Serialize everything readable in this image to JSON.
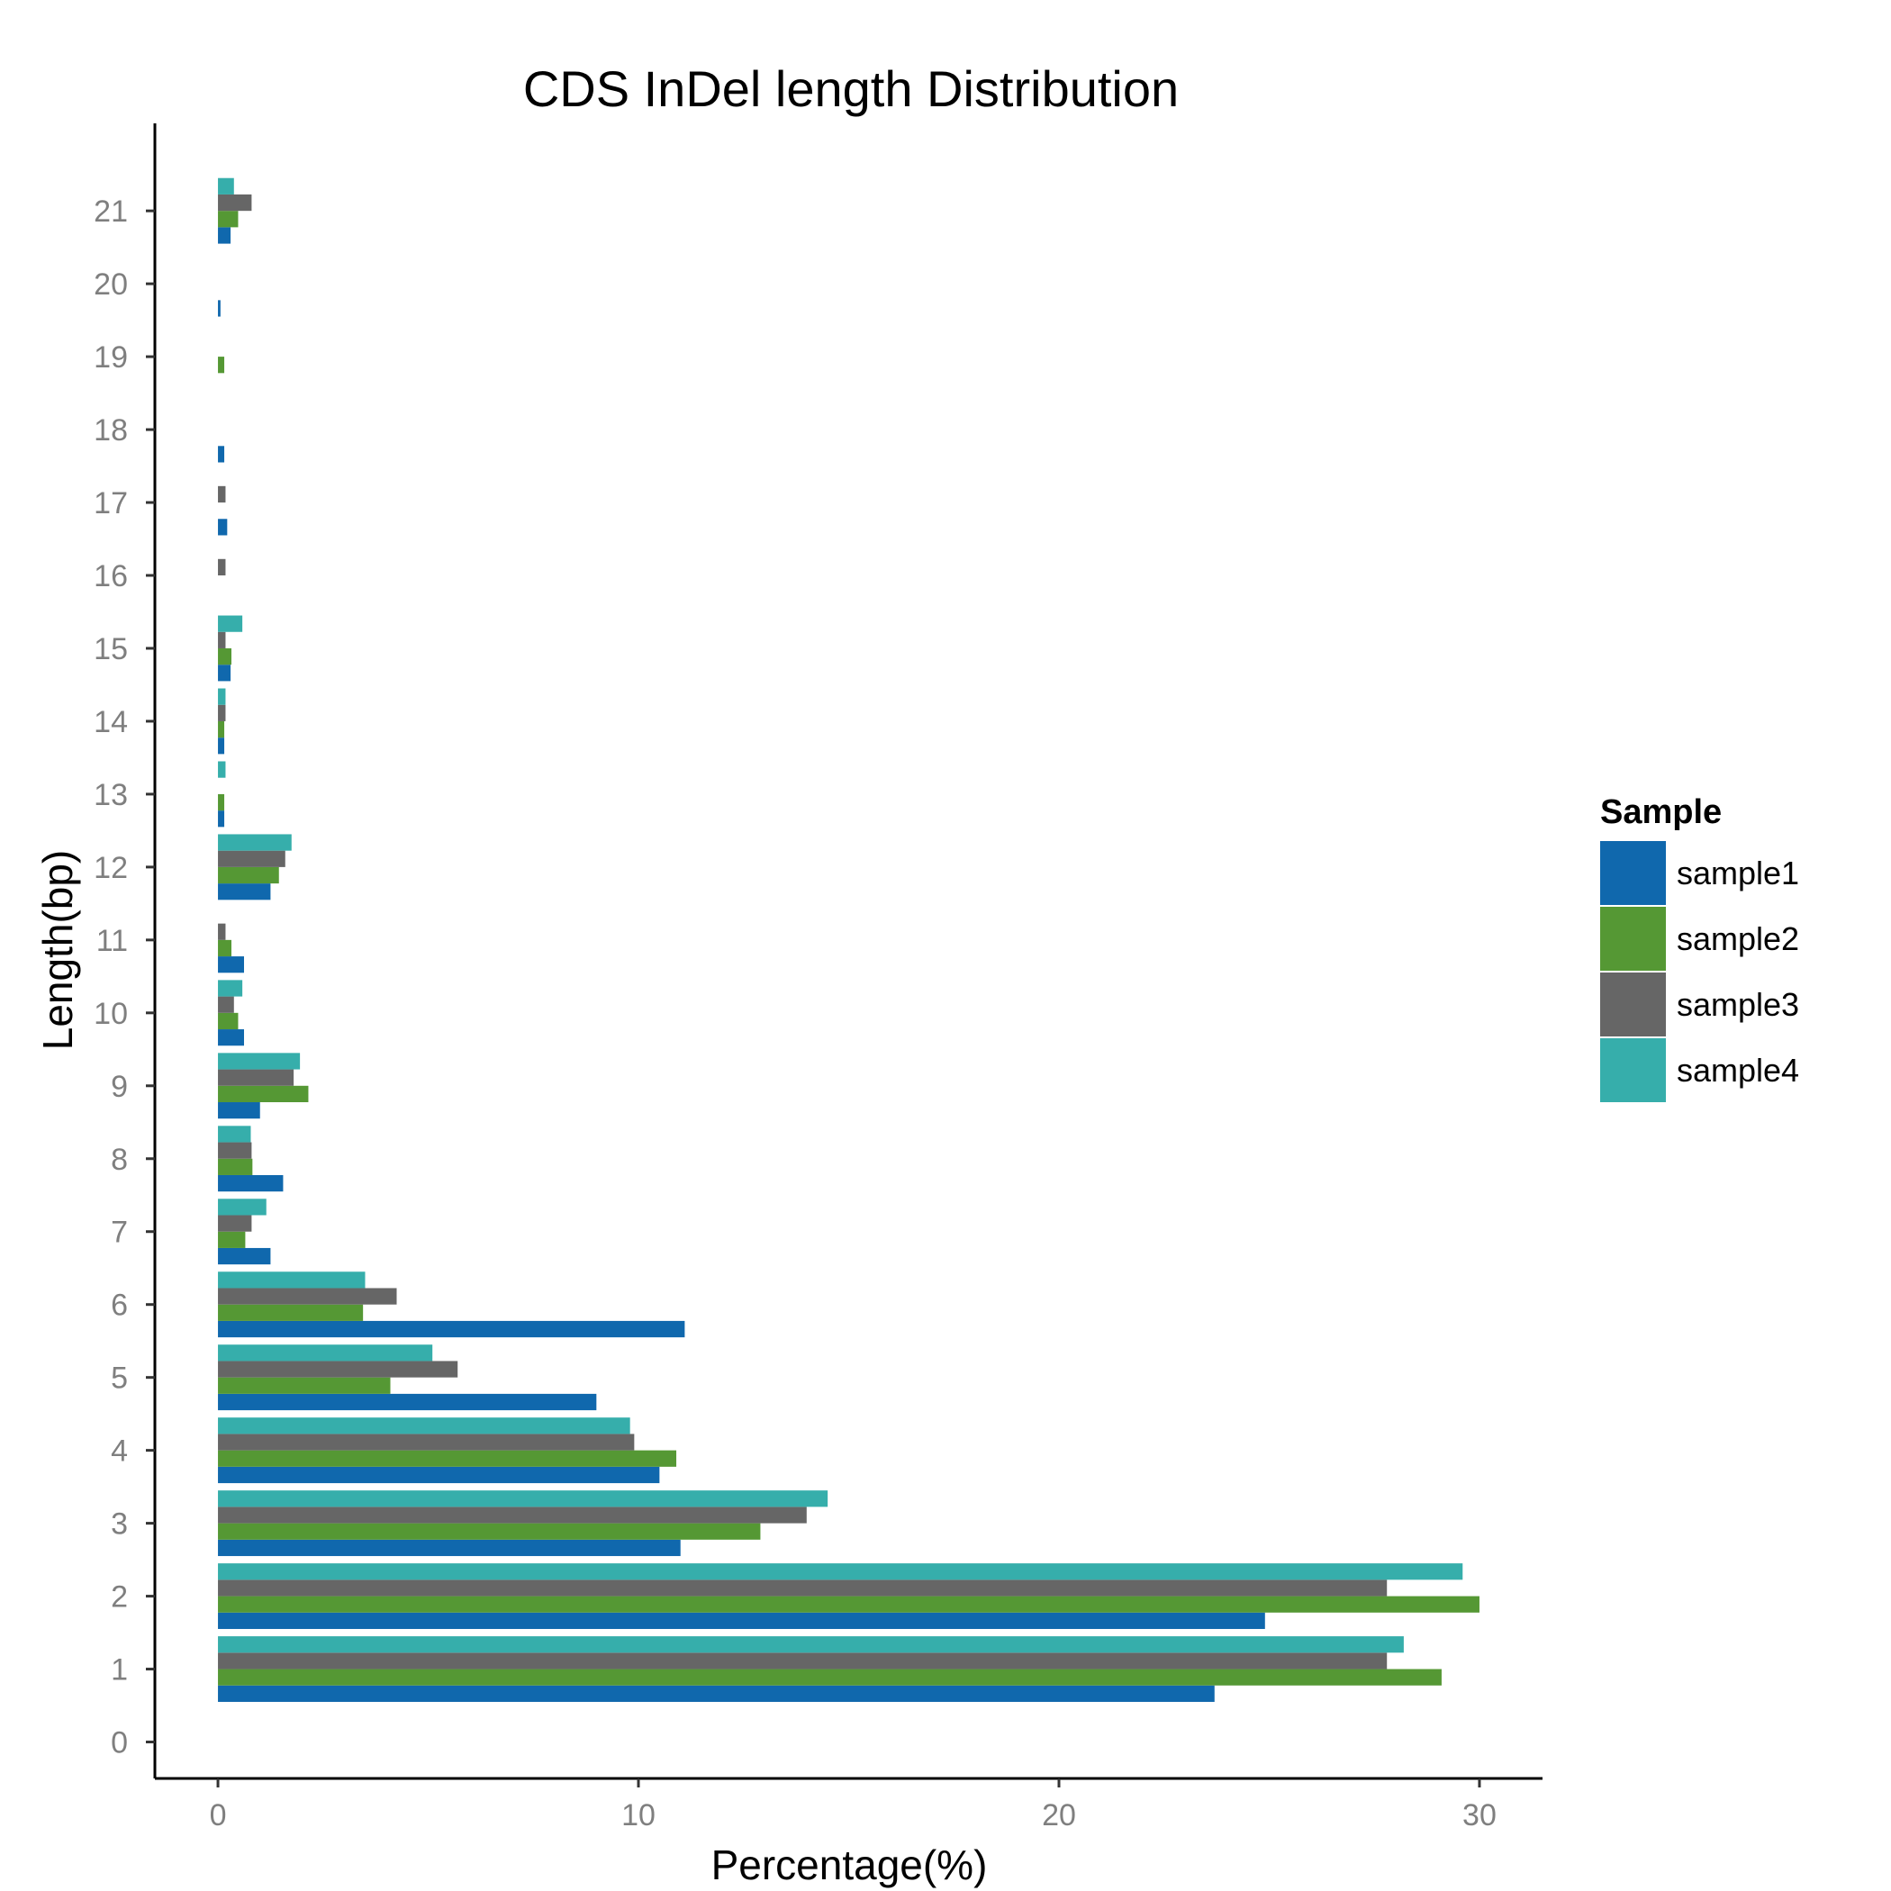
{
  "chart_data": {
    "type": "bar",
    "orientation": "horizontal",
    "title": "CDS InDel length Distribution",
    "xlabel": "Percentage(%)",
    "ylabel": "Length(bp)",
    "xlim": [
      -1.5,
      31.5
    ],
    "ylim": [
      -0.5,
      22.2
    ],
    "x_ticks": [
      0,
      10,
      20,
      30
    ],
    "x_tick_labels": [
      "0",
      "10",
      "20",
      "30"
    ],
    "categories": [
      0,
      1,
      2,
      3,
      4,
      5,
      6,
      7,
      8,
      9,
      10,
      11,
      12,
      13,
      14,
      15,
      16,
      17,
      18,
      19,
      20,
      21
    ],
    "category_labels": [
      "0",
      "1",
      "2",
      "3",
      "4",
      "5",
      "6",
      "7",
      "8",
      "9",
      "10",
      "11",
      "12",
      "13",
      "14",
      "15",
      "16",
      "17",
      "18",
      "19",
      "20",
      "21"
    ],
    "grid": false,
    "legend": {
      "title": "Sample",
      "position": "right",
      "entries": [
        "sample1",
        "sample2",
        "sample3",
        "sample4"
      ]
    },
    "series": [
      {
        "name": "sample1",
        "color": "#1068ad",
        "values": [
          0,
          23.7,
          24.9,
          11.0,
          10.5,
          9.0,
          11.1,
          1.25,
          1.55,
          1.0,
          0.62,
          0.62,
          1.25,
          0.15,
          0.15,
          0.3,
          0,
          0.22,
          0.15,
          0,
          0.06,
          0.3
        ]
      },
      {
        "name": "sample2",
        "color": "#559834",
        "values": [
          0,
          29.1,
          30.0,
          12.9,
          10.9,
          4.1,
          3.45,
          0.65,
          0.82,
          2.15,
          0.48,
          0.32,
          1.45,
          0.15,
          0.15,
          0.32,
          0,
          0,
          0,
          0.15,
          0,
          0.48
        ]
      },
      {
        "name": "sample3",
        "color": "#666666",
        "values": [
          0,
          27.8,
          27.8,
          14.0,
          9.9,
          5.7,
          4.25,
          0.8,
          0.8,
          1.8,
          0.38,
          0.18,
          1.6,
          0,
          0.18,
          0.18,
          0.18,
          0.18,
          0,
          0,
          0,
          0.8
        ]
      },
      {
        "name": "sample4",
        "color": "#36aeab",
        "values": [
          0,
          28.2,
          29.6,
          14.5,
          9.8,
          5.1,
          3.5,
          1.15,
          0.78,
          1.95,
          0.58,
          0,
          1.75,
          0.18,
          0.18,
          0.58,
          0,
          0,
          0,
          0,
          0,
          0.38
        ]
      }
    ]
  }
}
